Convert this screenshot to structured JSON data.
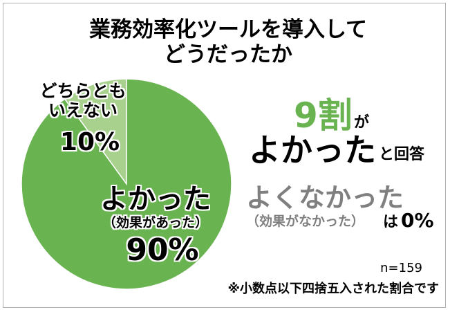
{
  "chart_data": {
    "type": "pie",
    "title": "業務効率化ツールを導入して\nどうだったか",
    "categories": [
      "よかった",
      "どちらとも\nいえない",
      "よくなかった"
    ],
    "sublabels": [
      "（効果があった）",
      null,
      "（効果がなかった）"
    ],
    "values": [
      90,
      10,
      0
    ],
    "value_labels": [
      "90%",
      "10%",
      "0%"
    ],
    "colors": [
      "#6ab351",
      "#a9d18e",
      "#7f7f7f"
    ],
    "callout": {
      "big": "9割",
      "particle": "が",
      "suffix": "と回答",
      "particle2": "は"
    },
    "notes": [
      "n=159",
      "※小数点以下四捨五入された割合です"
    ]
  }
}
